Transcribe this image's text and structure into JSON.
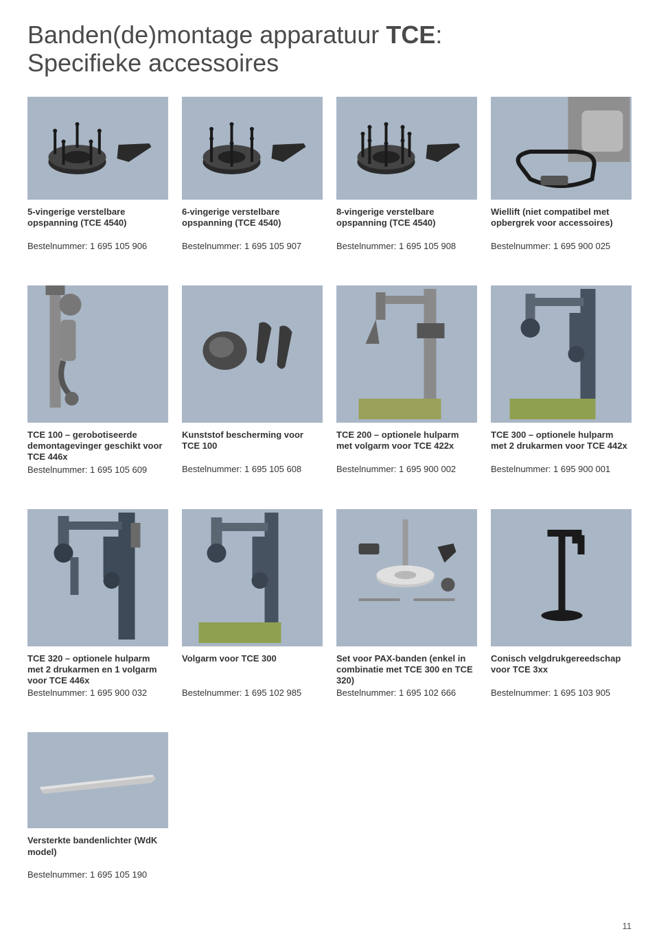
{
  "heading": {
    "part1": "Banden(de)montage apparatuur ",
    "brand": "TCE",
    "part2": ":",
    "line2": "Specifieke accessoires"
  },
  "colors": {
    "image_bg": "#a9b6c6",
    "text": "#333333",
    "heading": "#4a4a4a"
  },
  "items": [
    {
      "title": "5-vingerige verstelbare opspanning (TCE 4540)",
      "order": "Bestelnummer: 1 695 105 906",
      "shape": "chuck5"
    },
    {
      "title": "6-vingerige verstelbare opspanning (TCE 4540)",
      "order": "Bestelnummer: 1 695 105 907",
      "shape": "chuck6"
    },
    {
      "title": "8-vingerige verstelbare opspanning (TCE 4540)",
      "order": "Bestelnummer: 1 695 105 908",
      "shape": "chuck8"
    },
    {
      "title": "Wiellift (niet compatibel met opbergrek voor accessoires)",
      "order": "Bestelnummer: 1 695 900 025",
      "shape": "wheellift"
    },
    {
      "title": "TCE 100 – gerobotiseerde demontagevinger geschikt voor TCE 446x",
      "order": "Bestelnummer: 1 695 105 609",
      "shape": "robotfinger",
      "tall": true
    },
    {
      "title": "Kunststof bescherming voor TCE 100",
      "order": "Bestelnummer: 1 695 105 608",
      "shape": "plastic",
      "tall": true
    },
    {
      "title": "TCE 200 – optionele hulparm met volgarm voor TCE 422x",
      "order": "Bestelnummer: 1 695 900 002",
      "shape": "arm1",
      "tall": true
    },
    {
      "title": "TCE 300 – optionele hulparm met 2 drukarmen voor TCE 442x",
      "order": "Bestelnummer: 1 695 900 001",
      "shape": "arm2",
      "tall": true
    },
    {
      "title": "TCE 320 – optionele hulparm met 2 drukarmen en 1 volgarm voor TCE 446x",
      "order": "Bestelnummer: 1 695 900 032",
      "shape": "arm3",
      "tall": true
    },
    {
      "title": "Volgarm voor TCE 300",
      "order": "Bestelnummer: 1 695 102 985",
      "shape": "arm4",
      "tall": true
    },
    {
      "title": "Set voor PAX-banden (enkel in combinatie met TCE 300 en TCE 320)",
      "order": "Bestelnummer: 1 695 102 666",
      "shape": "paxset",
      "tall": true
    },
    {
      "title": "Conisch velgdrukgereedschap voor TCE 3xx",
      "order": "Bestelnummer: 1 695 103 905",
      "shape": "presstool",
      "tall": true
    },
    {
      "title": "Versterkte bandenlichter (WdK model)",
      "order": "Bestelnummer: 1 695 105 190",
      "shape": "lever",
      "last": true
    }
  ],
  "page_number": "11"
}
